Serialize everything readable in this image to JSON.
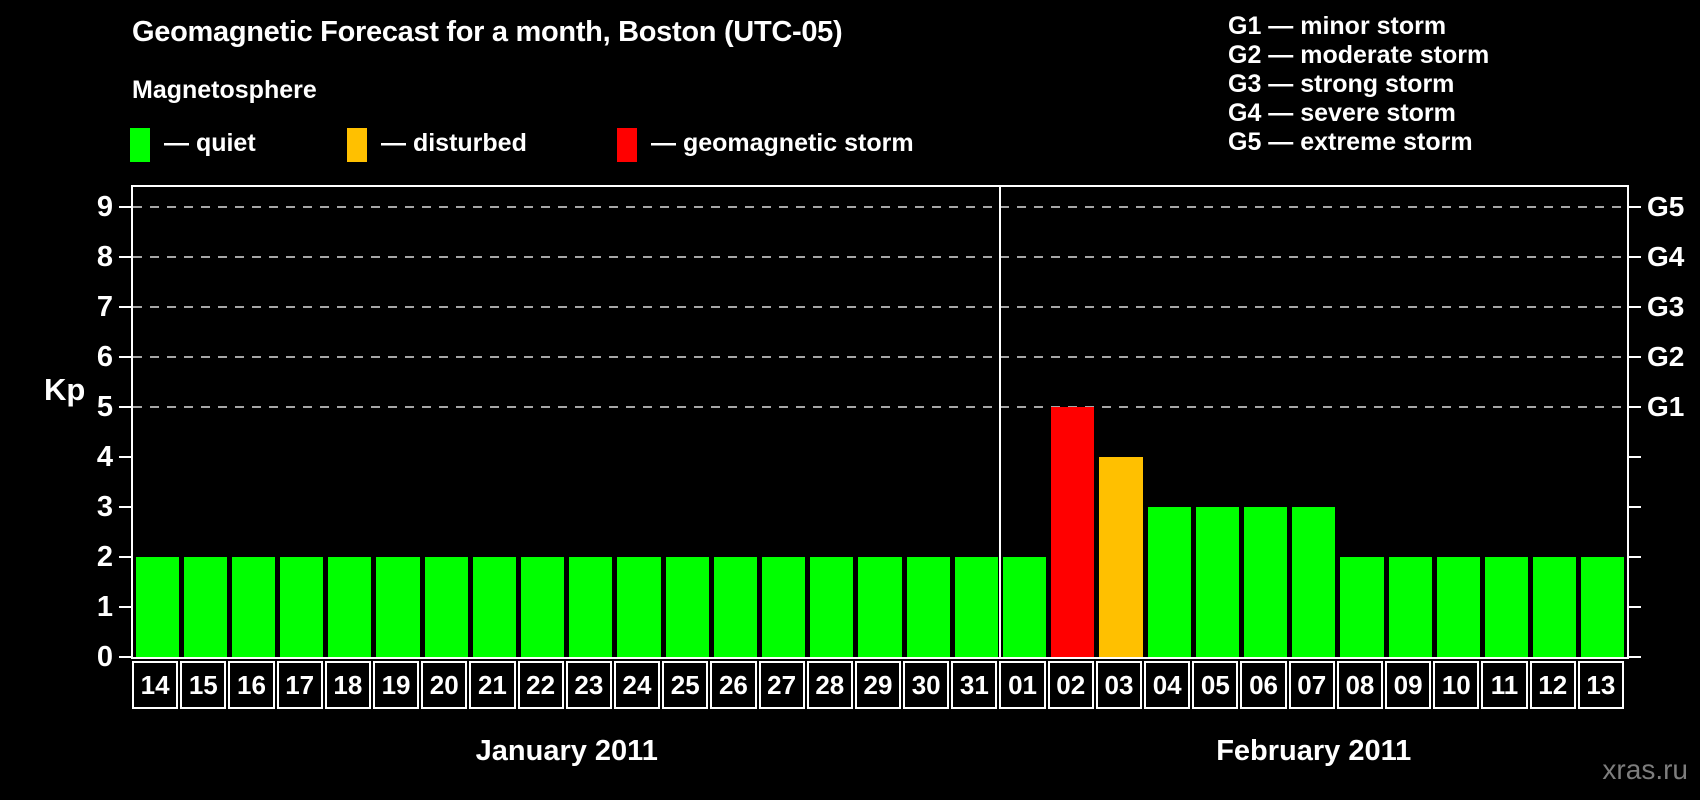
{
  "title": "Geomagnetic Forecast for a month, Boston (UTC-05)",
  "legend": {
    "heading": "Magnetosphere",
    "items": [
      {
        "name": "quiet",
        "label": "— quiet",
        "color": "#00ff00"
      },
      {
        "name": "disturbed",
        "label": "— disturbed",
        "color": "#ffc000"
      },
      {
        "name": "storm",
        "label": "— geomagnetic storm",
        "color": "#ff0000"
      }
    ]
  },
  "storm_scale_legend": [
    "G1 — minor storm",
    "G2 — moderate storm",
    "G3 — strong storm",
    "G4 — severe storm",
    "G5 — extreme storm"
  ],
  "y_axis": {
    "label": "Kp",
    "ticks": [
      0,
      1,
      2,
      3,
      4,
      5,
      6,
      7,
      8,
      9
    ]
  },
  "right_axis": {
    "labels": [
      {
        "label": "G1",
        "kp": 5
      },
      {
        "label": "G2",
        "kp": 6
      },
      {
        "label": "G3",
        "kp": 7
      },
      {
        "label": "G4",
        "kp": 8
      },
      {
        "label": "G5",
        "kp": 9
      }
    ]
  },
  "watermark": "xras.ru",
  "chart_data": {
    "type": "bar",
    "title": "Geomagnetic Forecast for a month, Boston (UTC-05)",
    "xlabel": "",
    "ylabel": "Kp",
    "ylim": [
      0,
      9.4
    ],
    "yticks": [
      0,
      1,
      2,
      3,
      4,
      5,
      6,
      7,
      8,
      9
    ],
    "grid_kp_levels": [
      5,
      6,
      7,
      8,
      9
    ],
    "grid_style": "dashed-gray-horizontal",
    "legend_position": "top-left",
    "status_colors": {
      "quiet": "#00ff00",
      "disturbed": "#ffc000",
      "storm": "#ff0000"
    },
    "months": [
      {
        "label": "January 2011",
        "day_count": 18
      },
      {
        "label": "February 2011",
        "day_count": 13
      }
    ],
    "points": [
      {
        "month": "January 2011",
        "day": "14",
        "kp": 2,
        "status": "quiet"
      },
      {
        "month": "January 2011",
        "day": "15",
        "kp": 2,
        "status": "quiet"
      },
      {
        "month": "January 2011",
        "day": "16",
        "kp": 2,
        "status": "quiet"
      },
      {
        "month": "January 2011",
        "day": "17",
        "kp": 2,
        "status": "quiet"
      },
      {
        "month": "January 2011",
        "day": "18",
        "kp": 2,
        "status": "quiet"
      },
      {
        "month": "January 2011",
        "day": "19",
        "kp": 2,
        "status": "quiet"
      },
      {
        "month": "January 2011",
        "day": "20",
        "kp": 2,
        "status": "quiet"
      },
      {
        "month": "January 2011",
        "day": "21",
        "kp": 2,
        "status": "quiet"
      },
      {
        "month": "January 2011",
        "day": "22",
        "kp": 2,
        "status": "quiet"
      },
      {
        "month": "January 2011",
        "day": "23",
        "kp": 2,
        "status": "quiet"
      },
      {
        "month": "January 2011",
        "day": "24",
        "kp": 2,
        "status": "quiet"
      },
      {
        "month": "January 2011",
        "day": "25",
        "kp": 2,
        "status": "quiet"
      },
      {
        "month": "January 2011",
        "day": "26",
        "kp": 2,
        "status": "quiet"
      },
      {
        "month": "January 2011",
        "day": "27",
        "kp": 2,
        "status": "quiet"
      },
      {
        "month": "January 2011",
        "day": "28",
        "kp": 2,
        "status": "quiet"
      },
      {
        "month": "January 2011",
        "day": "29",
        "kp": 2,
        "status": "quiet"
      },
      {
        "month": "January 2011",
        "day": "30",
        "kp": 2,
        "status": "quiet"
      },
      {
        "month": "January 2011",
        "day": "31",
        "kp": 2,
        "status": "quiet"
      },
      {
        "month": "February 2011",
        "day": "01",
        "kp": 2,
        "status": "quiet"
      },
      {
        "month": "February 2011",
        "day": "02",
        "kp": 5,
        "status": "storm"
      },
      {
        "month": "February 2011",
        "day": "03",
        "kp": 4,
        "status": "disturbed"
      },
      {
        "month": "February 2011",
        "day": "04",
        "kp": 3,
        "status": "quiet"
      },
      {
        "month": "February 2011",
        "day": "05",
        "kp": 3,
        "status": "quiet"
      },
      {
        "month": "February 2011",
        "day": "06",
        "kp": 3,
        "status": "quiet"
      },
      {
        "month": "February 2011",
        "day": "07",
        "kp": 3,
        "status": "quiet"
      },
      {
        "month": "February 2011",
        "day": "08",
        "kp": 2,
        "status": "quiet"
      },
      {
        "month": "February 2011",
        "day": "09",
        "kp": 2,
        "status": "quiet"
      },
      {
        "month": "February 2011",
        "day": "10",
        "kp": 2,
        "status": "quiet"
      },
      {
        "month": "February 2011",
        "day": "11",
        "kp": 2,
        "status": "quiet"
      },
      {
        "month": "February 2011",
        "day": "12",
        "kp": 2,
        "status": "quiet"
      },
      {
        "month": "February 2011",
        "day": "13",
        "kp": 2,
        "status": "quiet"
      }
    ]
  }
}
